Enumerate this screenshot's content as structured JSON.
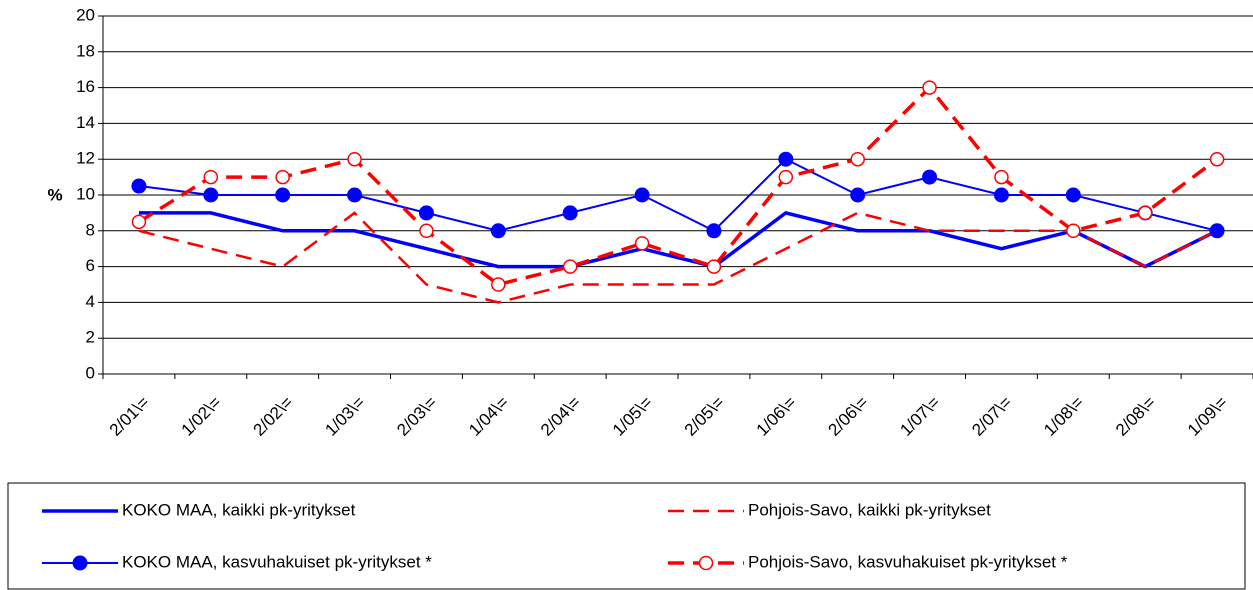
{
  "chart_data": {
    "type": "line",
    "y_label": "%",
    "categories": [
      "2/01\\=",
      "1/02\\=",
      "2/02\\=",
      "1/03\\=",
      "2/03\\=",
      "1/04\\=",
      "2/04\\=",
      "1/05\\=",
      "2/05\\=",
      "1/06\\=",
      "2/06\\=",
      "1/07\\=",
      "2/07\\=",
      "1/08\\=",
      "2/08\\=",
      "1/09\\="
    ],
    "ylim": [
      0,
      20
    ],
    "yticks": [
      0,
      2,
      4,
      6,
      8,
      10,
      12,
      14,
      16,
      18,
      20
    ],
    "grid": true,
    "legend": "bottom",
    "series": [
      {
        "name": "KOKO MAA, kaikki pk-yritykset",
        "color": "#0000ff",
        "line_style": "solid",
        "marker": "none",
        "values": [
          9,
          9,
          8,
          8,
          7,
          6,
          6,
          7,
          6,
          9,
          8,
          8,
          7,
          8,
          6,
          8
        ]
      },
      {
        "name": "Pohjois-Savo, kaikki pk-yritykset",
        "color": "#ff0000",
        "line_style": "dashed",
        "marker": "none",
        "values": [
          8,
          7,
          6,
          9,
          5,
          4,
          5,
          5,
          5,
          7,
          9,
          8,
          8,
          8,
          6,
          8
        ]
      },
      {
        "name": "KOKO MAA, kasvuhakuiset pk-yritykset *",
        "color": "#0000ff",
        "line_style": "solid",
        "marker": "filled-circle",
        "values": [
          10.5,
          10,
          10,
          10,
          9,
          8,
          9,
          10,
          8,
          12,
          10,
          11,
          10,
          10,
          9,
          8
        ]
      },
      {
        "name": "Pohjois-Savo, kasvuhakuiset pk-yritykset *",
        "color": "#ff0000",
        "line_style": "dashed",
        "marker": "open-circle",
        "values": [
          8.5,
          11,
          11,
          12,
          8,
          5,
          6,
          7.3,
          6,
          11,
          12,
          16,
          11,
          8,
          9,
          12
        ]
      }
    ]
  }
}
